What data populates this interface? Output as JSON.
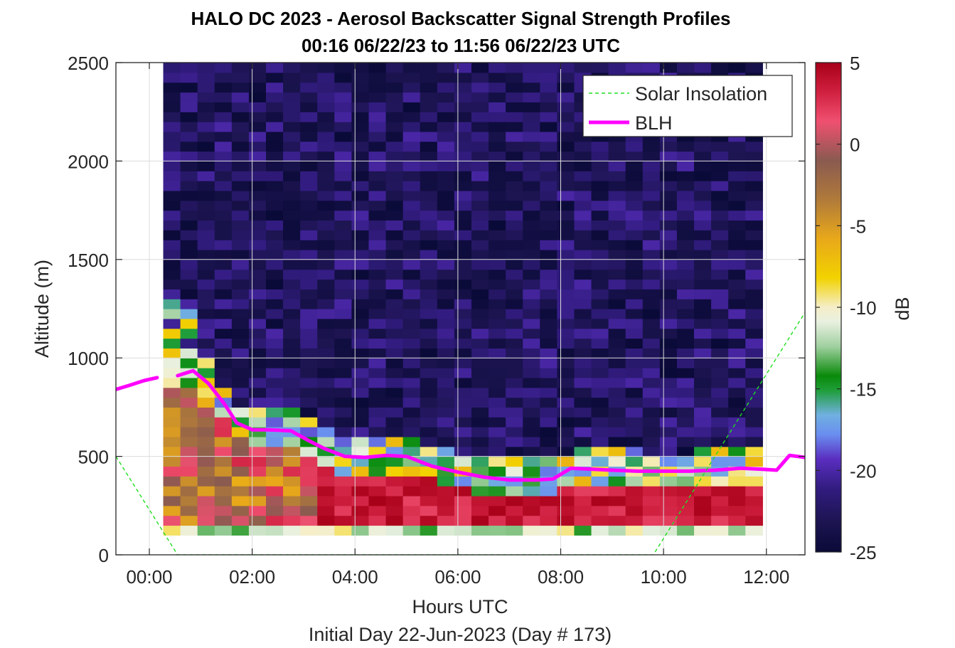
{
  "chart_data": {
    "type": "heatmap",
    "title": "HALO DC 2023 - Aerosol Backscatter Signal Strength Profiles",
    "subtitle": "00:16 06/22/23 to 11:56 06/22/23  UTC",
    "xlabel": "Hours UTC",
    "footer": "Initial Day 22-Jun-2023 (Day # 173)",
    "ylabel": "Altitude (m)",
    "colorbar_label": "dB",
    "xlim_hours": [
      -0.65,
      12.75
    ],
    "ylim": [
      0,
      2500
    ],
    "x_ticks": [
      {
        "hours": 0,
        "label": "00:00"
      },
      {
        "hours": 2,
        "label": "02:00"
      },
      {
        "hours": 4,
        "label": "04:00"
      },
      {
        "hours": 6,
        "label": "06:00"
      },
      {
        "hours": 8,
        "label": "08:00"
      },
      {
        "hours": 10,
        "label": "10:00"
      },
      {
        "hours": 12,
        "label": "12:00"
      }
    ],
    "y_ticks": [
      {
        "value": 0,
        "label": "0"
      },
      {
        "value": 500,
        "label": "500"
      },
      {
        "value": 1000,
        "label": "1000"
      },
      {
        "value": 1500,
        "label": "1500"
      },
      {
        "value": 2000,
        "label": "2000"
      },
      {
        "value": 2500,
        "label": "2500"
      }
    ],
    "colorbar": {
      "range": [
        -25,
        5
      ],
      "ticks": [
        {
          "value": 5,
          "label": "5"
        },
        {
          "value": 0,
          "label": "0"
        },
        {
          "value": -5,
          "label": "-5"
        },
        {
          "value": -10,
          "label": "-10"
        },
        {
          "value": -15,
          "label": "-15"
        },
        {
          "value": -20,
          "label": "-20"
        },
        {
          "value": -25,
          "label": "-25"
        }
      ]
    },
    "heatmap": {
      "units": "dB",
      "x_start_hours": 0.27,
      "x_end_hours": 11.93,
      "bin_hours": 0.333,
      "alt_start_m": 100,
      "alt_end_m": 2500,
      "bin_m": 50
    },
    "grid": true,
    "legend": {
      "placement": "top-right",
      "entries": [
        {
          "name": "Solar Insolation",
          "style": "dashed",
          "color": "#22dd22"
        },
        {
          "name": "BLH",
          "style": "solid",
          "color": "#ff00ff"
        }
      ]
    },
    "series": [
      {
        "name": "BLH",
        "color": "#ff00ff",
        "x": [
          -0.65,
          -0.4,
          -0.1,
          0.15
        ],
        "y": [
          840,
          860,
          885,
          900
        ]
      },
      {
        "name": "BLH",
        "color": "#ff00ff",
        "x": [
          0.55,
          0.85,
          1.15,
          1.45,
          1.7,
          2.0,
          2.3,
          2.75,
          3.1,
          3.4,
          3.8,
          4.2,
          4.6,
          5.0,
          5.5,
          6.0,
          6.5,
          7.0,
          7.5,
          7.85,
          8.2,
          8.6,
          9.0,
          9.5,
          10.0,
          10.5,
          11.0,
          11.5,
          11.9,
          12.2,
          12.45,
          12.75
        ],
        "y": [
          910,
          935,
          870,
          770,
          670,
          635,
          635,
          630,
          580,
          540,
          500,
          495,
          505,
          500,
          450,
          420,
          395,
          380,
          380,
          385,
          440,
          435,
          430,
          425,
          425,
          425,
          430,
          440,
          435,
          430,
          505,
          495
        ]
      },
      {
        "name": "Solar Insolation",
        "color": "#22dd22",
        "x": [
          -0.65,
          0.55,
          9.8,
          12.75
        ],
        "y": [
          500,
          0,
          0,
          1230
        ]
      }
    ]
  }
}
